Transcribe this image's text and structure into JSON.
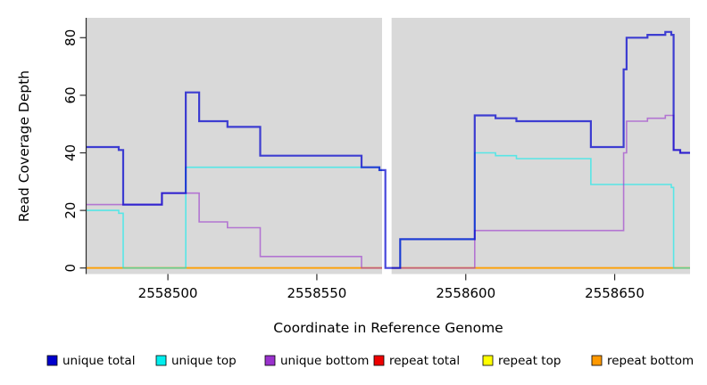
{
  "chart_data": {
    "type": "line",
    "subtype": "step-coverage",
    "title": "",
    "xlabel": "Coordinate in Reference Genome",
    "ylabel": "Read Coverage Depth",
    "xlim": [
      2558472.7,
      2558675.3
    ],
    "ylim": [
      -2.1,
      86.9
    ],
    "x_ticks": [
      2558500,
      2558550,
      2558600,
      2558650
    ],
    "y_ticks": [
      0,
      20,
      40,
      60,
      80
    ],
    "grid": false,
    "plot_bg": "#d9d9d9",
    "axis_color": "#2b2b2b",
    "gap_mask": {
      "from": 2558571.9,
      "to": 2558575.1,
      "color": "#ffffff"
    },
    "legend_position": "bottom",
    "draw_order": [
      "repeat total",
      "repeat top",
      "repeat bottom",
      "unique top",
      "unique bottom",
      "GAP",
      "unique total"
    ],
    "series": [
      {
        "name": "unique total",
        "color": "#0000CD",
        "opacity": 0.72,
        "width": 2.2,
        "steps": [
          [
            2558472.7,
            42
          ],
          [
            2558483.5,
            41
          ],
          [
            2558485,
            22
          ],
          [
            2558498,
            26
          ],
          [
            2558506,
            61
          ],
          [
            2558510.5,
            51
          ],
          [
            2558520,
            49
          ],
          [
            2558531,
            39
          ],
          [
            2558565,
            35
          ],
          [
            2558571,
            34
          ],
          [
            2558573,
            0
          ],
          [
            2558578,
            10
          ],
          [
            2558603,
            53
          ],
          [
            2558610,
            52
          ],
          [
            2558617,
            51
          ],
          [
            2558642,
            42
          ],
          [
            2558653,
            69
          ],
          [
            2558654,
            80
          ],
          [
            2558661,
            81
          ],
          [
            2558667,
            82
          ],
          [
            2558669,
            81
          ],
          [
            2558669.8,
            41
          ],
          [
            2558672,
            40
          ]
        ]
      },
      {
        "name": "unique top",
        "color": "#00EEEE",
        "opacity": 0.6,
        "width": 1.6,
        "steps": [
          [
            2558472.7,
            20
          ],
          [
            2558483.5,
            19
          ],
          [
            2558485,
            0
          ],
          [
            2558506,
            35
          ],
          [
            2558571,
            34
          ],
          [
            2558573,
            0
          ],
          [
            2558578,
            10
          ],
          [
            2558603,
            40
          ],
          [
            2558610,
            39
          ],
          [
            2558617,
            38
          ],
          [
            2558642,
            29
          ],
          [
            2558669,
            28
          ],
          [
            2558669.8,
            0
          ]
        ]
      },
      {
        "name": "unique bottom",
        "color": "#9A32CD",
        "opacity": 0.6,
        "width": 1.6,
        "steps": [
          [
            2558472.7,
            22
          ],
          [
            2558498,
            26
          ],
          [
            2558510.5,
            16
          ],
          [
            2558520,
            14
          ],
          [
            2558531,
            4
          ],
          [
            2558565,
            0
          ],
          [
            2558603,
            13
          ],
          [
            2558653,
            40
          ],
          [
            2558654,
            51
          ],
          [
            2558661,
            52
          ],
          [
            2558667,
            53
          ],
          [
            2558669.8,
            41
          ],
          [
            2558672,
            40
          ]
        ]
      },
      {
        "name": "repeat total",
        "color": "#EE0000",
        "opacity": 0.65,
        "width": 1.6,
        "steps": [
          [
            2558472.7,
            0
          ]
        ]
      },
      {
        "name": "repeat top",
        "color": "#FFFF00",
        "opacity": 0.65,
        "width": 1.6,
        "steps": [
          [
            2558472.7,
            0
          ]
        ]
      },
      {
        "name": "repeat bottom",
        "color": "#FF9900",
        "opacity": 0.8,
        "width": 1.8,
        "steps": [
          [
            2558472.7,
            0
          ]
        ]
      }
    ]
  }
}
